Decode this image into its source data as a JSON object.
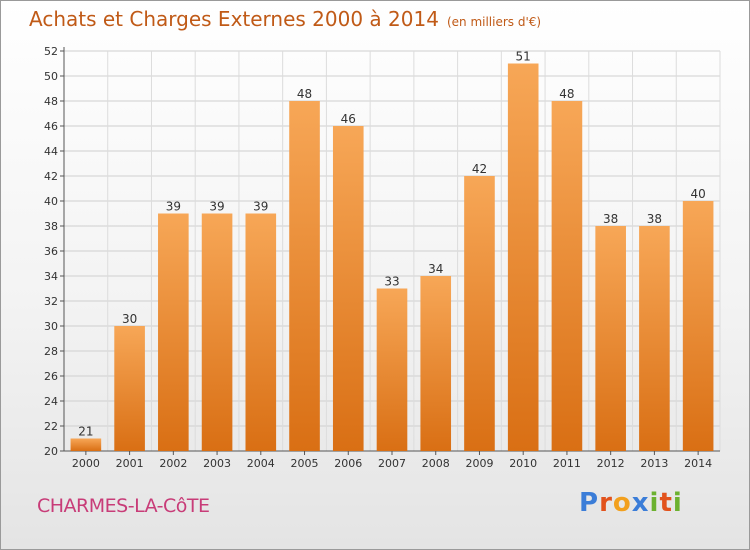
{
  "title": "Achats et Charges Externes 2000 à 2014",
  "unit_note": "(en milliers d'€)",
  "commune": "CHARMES-LA-CôTE",
  "logo": {
    "text": "Proxiti",
    "letters": [
      {
        "ch": "P",
        "color": "#3b7dd8"
      },
      {
        "ch": "r",
        "color": "#e2521c"
      },
      {
        "ch": "o",
        "color": "#f2a01e"
      },
      {
        "ch": "x",
        "color": "#3b7dd8"
      },
      {
        "ch": "i",
        "color": "#6cb12f"
      },
      {
        "ch": "t",
        "color": "#e2521c"
      },
      {
        "ch": "i",
        "color": "#6cb12f"
      }
    ]
  },
  "colors": {
    "bar_top": "#f7a757",
    "bar_bottom": "#d96f14",
    "title": "#c05a17",
    "commune": "#c83c78"
  },
  "chart_data": {
    "type": "bar",
    "categories": [
      "2000",
      "2001",
      "2002",
      "2003",
      "2004",
      "2005",
      "2006",
      "2007",
      "2008",
      "2009",
      "2010",
      "2011",
      "2012",
      "2013",
      "2014"
    ],
    "values": [
      21,
      30,
      39,
      39,
      39,
      48,
      46,
      33,
      34,
      42,
      51,
      48,
      38,
      38,
      40
    ],
    "title": "Achats et Charges Externes 2000 à 2014",
    "ylim": [
      20,
      52
    ],
    "yticks": [
      20,
      22,
      24,
      26,
      28,
      30,
      32,
      34,
      36,
      38,
      40,
      42,
      44,
      46,
      48,
      50,
      52
    ],
    "grid": true
  }
}
